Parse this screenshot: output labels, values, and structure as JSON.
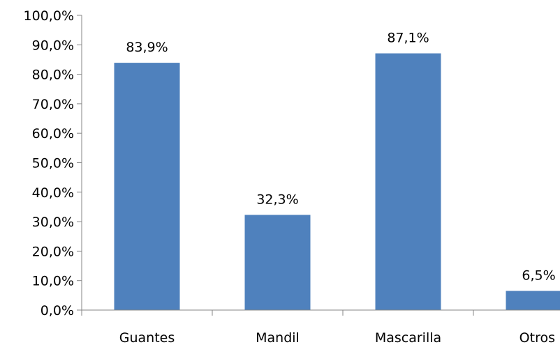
{
  "chart_data": {
    "type": "bar",
    "categories": [
      "Guantes",
      "Mandil",
      "Mascarilla",
      "Otros"
    ],
    "values": [
      83.9,
      32.3,
      87.1,
      6.5
    ],
    "data_labels": [
      "83,9%",
      "32,3%",
      "87,1%",
      "6,5%"
    ],
    "title": "",
    "xlabel": "",
    "ylabel": "",
    "ylim": [
      0,
      100
    ],
    "y_ticks": [
      0,
      10,
      20,
      30,
      40,
      50,
      60,
      70,
      80,
      90,
      100
    ],
    "y_tick_labels": [
      "0,0%",
      "10,0%",
      "20,0%",
      "30,0%",
      "40,0%",
      "50,0%",
      "60,0%",
      "70,0%",
      "80,0%",
      "90,0%",
      "100,0%"
    ],
    "grid": false,
    "legend": "none",
    "bar_color": "#4F81BD",
    "axis_color": "#868686"
  }
}
